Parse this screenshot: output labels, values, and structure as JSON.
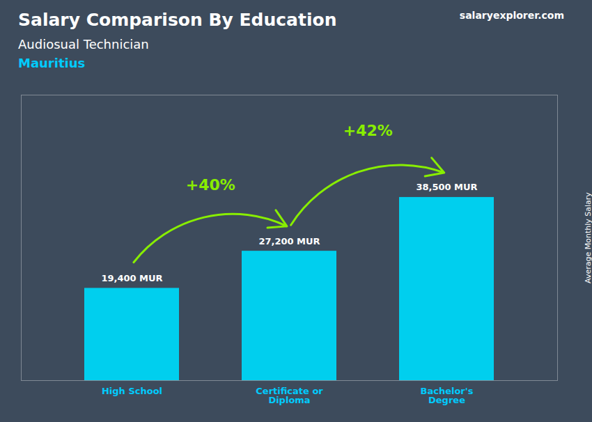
{
  "chart_data": {
    "type": "bar",
    "title": "Salary Comparison By Education",
    "subtitle": "Audiosual Technician",
    "ylabel": "Average Monthly Salary",
    "categories": [
      "High School",
      "Certificate or\nDiploma",
      "Bachelor's\nDegree"
    ],
    "values": [
      19400,
      27200,
      38500
    ],
    "value_labels": [
      "19,400 MUR",
      "27,200 MUR",
      "38,500 MUR"
    ],
    "data_labels": true,
    "color": "#00cfee",
    "ylim": [
      0,
      60000
    ],
    "tick_labels": "x",
    "grid": false,
    "annotations": [
      {
        "text": "+40%",
        "from": "High School",
        "to": "Certificate or\nDiploma",
        "color": "#88ee00"
      },
      {
        "text": "+42%",
        "from": "Certificate or\nDiploma",
        "to": "Bachelor's\nDegree",
        "color": "#88ee00"
      },
      {
        "text": "Mauritius",
        "color": "#00ccff"
      },
      {
        "text": "salaryexplorer.com"
      }
    ]
  }
}
